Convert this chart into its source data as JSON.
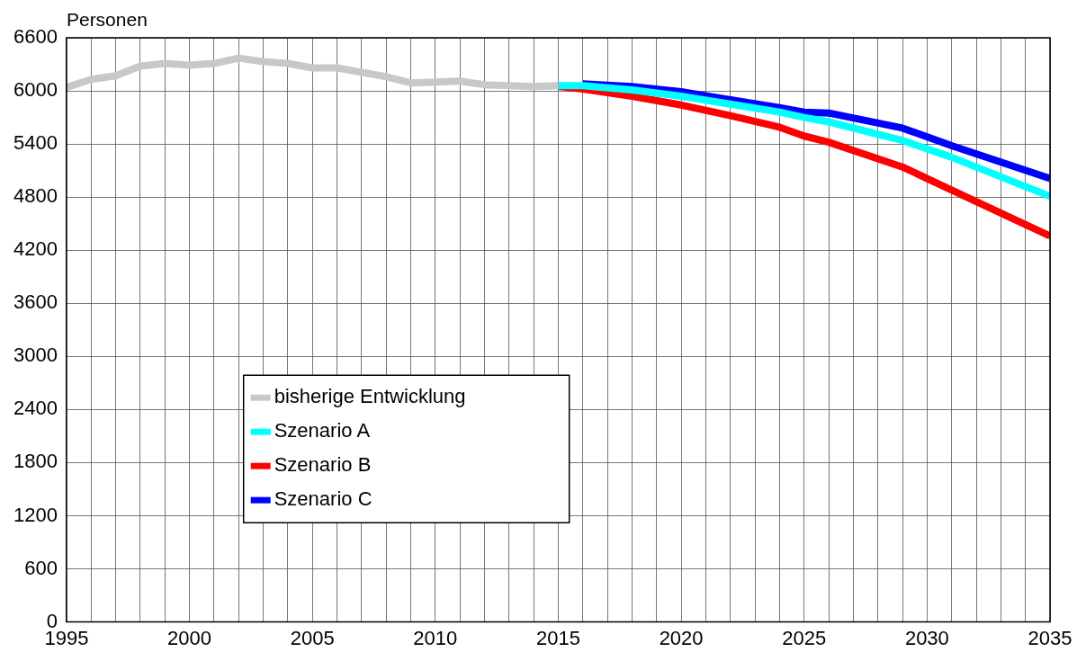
{
  "chart_data": {
    "type": "line",
    "ylabel": "Personen",
    "xlim": [
      1995,
      2035
    ],
    "xticks": [
      1995,
      {
        "value": 1996,
        "label": null
      },
      {
        "value": 1997,
        "label": null
      },
      {
        "value": 1998,
        "label": null
      },
      {
        "value": 1999,
        "label": null
      },
      2000,
      {
        "value": 2001,
        "label": null
      },
      {
        "value": 2002,
        "label": null
      },
      {
        "value": 2003,
        "label": null
      },
      {
        "value": 2004,
        "label": null
      },
      2005,
      {
        "value": 2006,
        "label": null
      },
      {
        "value": 2007,
        "label": null
      },
      {
        "value": 2008,
        "label": null
      },
      {
        "value": 2009,
        "label": null
      },
      2010,
      {
        "value": 2011,
        "label": null
      },
      {
        "value": 2012,
        "label": null
      },
      {
        "value": 2013,
        "label": null
      },
      {
        "value": 2014,
        "label": null
      },
      2015,
      {
        "value": 2016,
        "label": null
      },
      {
        "value": 2017,
        "label": null
      },
      {
        "value": 2018,
        "label": null
      },
      {
        "value": 2019,
        "label": null
      },
      2020,
      {
        "value": 2021,
        "label": null
      },
      {
        "value": 2022,
        "label": null
      },
      {
        "value": 2023,
        "label": null
      },
      {
        "value": 2024,
        "label": null
      },
      2025,
      {
        "value": 2026,
        "label": null
      },
      {
        "value": 2027,
        "label": null
      },
      {
        "value": 2028,
        "label": null
      },
      {
        "value": 2029,
        "label": null
      },
      2030,
      {
        "value": 2031,
        "label": null
      },
      {
        "value": 2032,
        "label": null
      },
      {
        "value": 2033,
        "label": null
      },
      {
        "value": 2034,
        "label": null
      },
      2035
    ],
    "ylim": [
      0,
      6600
    ],
    "yticks": [
      0,
      600,
      1200,
      1800,
      2400,
      3000,
      3600,
      4200,
      4800,
      5400,
      6000,
      6600
    ],
    "grid": true,
    "legend": "bottom left",
    "marker": "none",
    "line_style": "solid",
    "series": [
      {
        "name": "bisherige Entwicklung",
        "color": "#c8c8c8",
        "x": [
          1995,
          1996,
          1997,
          1998,
          1999,
          2000,
          2001,
          2002,
          2003,
          2004,
          2005,
          2006,
          2007,
          2008,
          2009,
          2010,
          2011,
          2012,
          2013,
          2014,
          2015
        ],
        "values": [
          6040,
          6130,
          6170,
          6280,
          6310,
          6290,
          6310,
          6370,
          6330,
          6310,
          6260,
          6260,
          6210,
          6160,
          6090,
          6100,
          6110,
          6070,
          6060,
          6050,
          6060
        ]
      },
      {
        "name": "Szenario A",
        "color": "#00ffff",
        "x": [
          2015,
          2016,
          2018,
          2020,
          2022,
          2024,
          2025,
          2026,
          2029,
          2031,
          2035
        ],
        "values": [
          6060,
          6060,
          6010,
          5940,
          5850,
          5760,
          5700,
          5650,
          5440,
          5250,
          4810
        ]
      },
      {
        "name": "Szenario B",
        "color": "#ff0000",
        "x": [
          2015,
          2016,
          2018,
          2020,
          2022,
          2024,
          2025,
          2026,
          2029,
          2031,
          2035
        ],
        "values": [
          6050,
          6020,
          5940,
          5840,
          5720,
          5590,
          5490,
          5420,
          5140,
          4880,
          4360
        ]
      },
      {
        "name": "Szenario C",
        "color": "#0000ff",
        "x": [
          2016,
          2018,
          2020,
          2022,
          2024,
          2025,
          2026,
          2029,
          2031,
          2035
        ],
        "values": [
          6080,
          6050,
          5990,
          5900,
          5810,
          5760,
          5750,
          5580,
          5380,
          5010
        ]
      }
    ]
  }
}
